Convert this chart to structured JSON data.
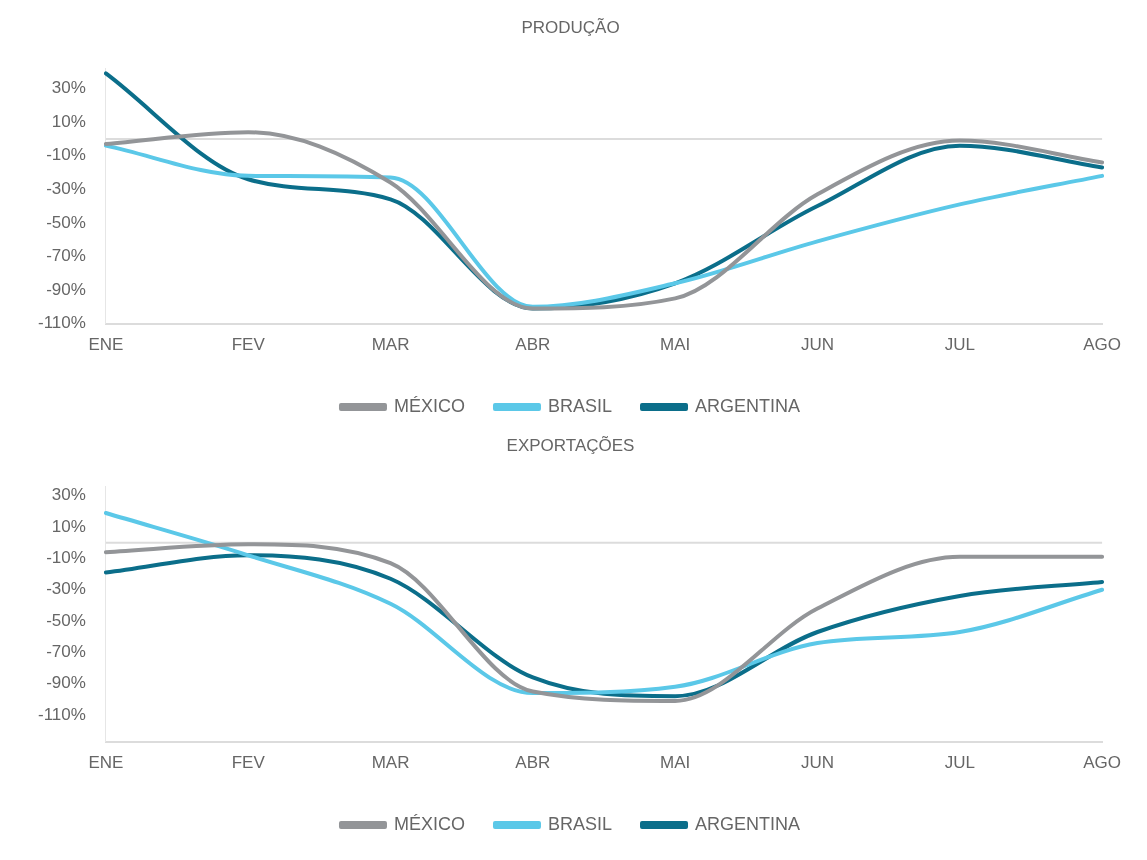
{
  "chart_data": [
    {
      "type": "line",
      "title": "PRODUÇÃO",
      "categories": [
        "ENE",
        "FEV",
        "MAR",
        "ABR",
        "MAI",
        "JUN",
        "JUL",
        "AGO"
      ],
      "series": [
        {
          "name": "MÉXICO",
          "color": "#939598",
          "values": [
            -3,
            4,
            -26,
            -101,
            -95,
            -33,
            -1,
            -14
          ]
        },
        {
          "name": "BRASIL",
          "color": "#5bc8e8",
          "values": [
            -4,
            -22,
            -23,
            -100,
            -86,
            -61,
            -39,
            -22
          ]
        },
        {
          "name": "ARGENTINA",
          "color": "#0b6e8a",
          "values": [
            39,
            -24,
            -36,
            -101,
            -86,
            -40,
            -4,
            -17
          ]
        }
      ],
      "ylim": [
        -110,
        42
      ],
      "yticks": [
        {
          "value": 30,
          "label": "30%"
        },
        {
          "value": 10,
          "label": "10%"
        },
        {
          "value": -10,
          "label": "-10%"
        },
        {
          "value": -30,
          "label": "-30%"
        },
        {
          "value": -50,
          "label": "-50%"
        },
        {
          "value": -70,
          "label": "-70%"
        },
        {
          "value": -90,
          "label": "-90%"
        },
        {
          "value": -110,
          "label": "-110%"
        }
      ],
      "ref_lines": [
        {
          "axis": "y",
          "value": 0,
          "color": "#dcdcdc"
        }
      ],
      "grid": false,
      "legend": "bottom",
      "marker": "none",
      "line_style": "solid"
    },
    {
      "type": "line",
      "title": "EXPORTAÇÕES",
      "categories": [
        "ENE",
        "FEV",
        "MAR",
        "ABR",
        "MAI",
        "JUN",
        "JUL",
        "AGO"
      ],
      "series": [
        {
          "name": "MÉXICO",
          "color": "#939598",
          "values": [
            -6,
            -1,
            -13,
            -95,
            -101,
            -42,
            -9,
            -9
          ]
        },
        {
          "name": "BRASIL",
          "color": "#5bc8e8",
          "values": [
            19,
            -8,
            -39,
            -96,
            -92,
            -64,
            -57,
            -30
          ]
        },
        {
          "name": "ARGENTINA",
          "color": "#0b6e8a",
          "values": [
            -19,
            -8,
            -23,
            -86,
            -98,
            -57,
            -34,
            -25
          ]
        }
      ],
      "ylim": [
        -127,
        36
      ],
      "yticks": [
        {
          "value": 30,
          "label": "30%"
        },
        {
          "value": 10,
          "label": "10%"
        },
        {
          "value": -10,
          "label": "-10%"
        },
        {
          "value": -30,
          "label": "-30%"
        },
        {
          "value": -50,
          "label": "-50%"
        },
        {
          "value": -70,
          "label": "-70%"
        },
        {
          "value": -90,
          "label": "-90%"
        },
        {
          "value": -110,
          "label": "-110%"
        }
      ],
      "ref_lines": [
        {
          "axis": "y",
          "value": 0,
          "color": "#dcdcdc"
        }
      ],
      "grid": false,
      "legend": "bottom",
      "marker": "none",
      "line_style": "solid"
    }
  ]
}
